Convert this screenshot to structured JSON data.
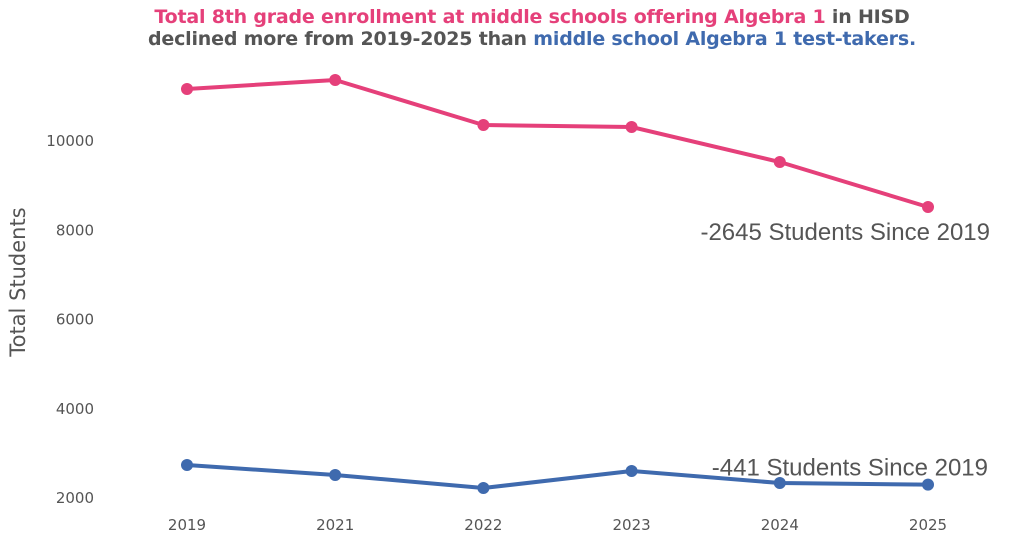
{
  "title": {
    "line1": [
      {
        "text": "Total 8th grade enrollment at middle schools offering Algebra 1",
        "color": "pink"
      },
      {
        "text": " in HISD",
        "color": "gray"
      }
    ],
    "line2": [
      {
        "text": "declined more from 2019-2025 than ",
        "color": "gray"
      },
      {
        "text": "middle school Algebra 1 test-takers.",
        "color": "blue"
      }
    ]
  },
  "chart_data": {
    "type": "line",
    "title": "Total 8th grade enrollment at middle schools offering Algebra 1 in HISD declined more from 2019-2025 than middle school Algebra 1 test-takers.",
    "xlabel": "",
    "ylabel": "Total Students",
    "categories": [
      "2019",
      "2021",
      "2022",
      "2023",
      "2024",
      "2025"
    ],
    "yticks": [
      2000,
      4000,
      6000,
      8000,
      10000
    ],
    "ylim": [
      1700,
      12000
    ],
    "grid": false,
    "series": [
      {
        "name": "Total 8th grade enrollment at middle schools offering Algebra 1",
        "color": "#E5407A",
        "values": [
          11166,
          11367,
          10359,
          10314,
          9529,
          8521
        ],
        "annotation": "-2645 Students Since 2019"
      },
      {
        "name": "Middle school Algebra 1 test-takers",
        "color": "#3F6AAE",
        "values": [
          2740,
          2515,
          2224,
          2605,
          2336,
          2299
        ],
        "annotation": "-441 Students Since 2019"
      }
    ]
  }
}
